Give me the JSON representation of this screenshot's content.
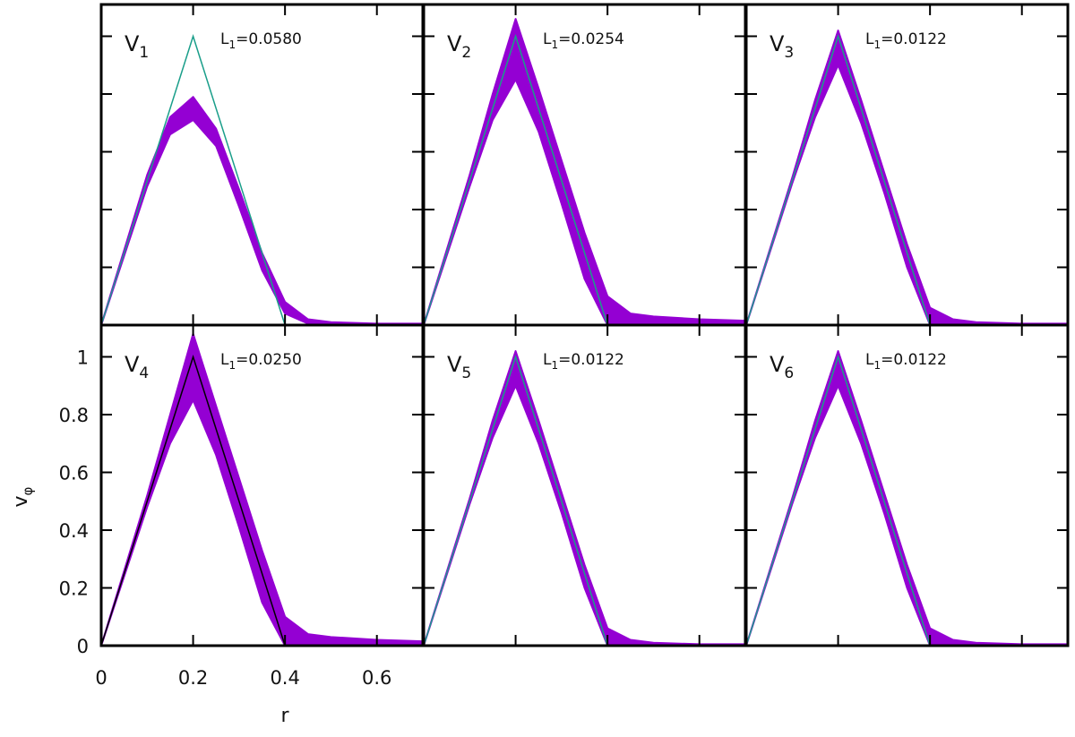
{
  "chart_data": {
    "type": "scatter",
    "xlabel": "r",
    "ylabel_main": "v",
    "ylabel_sub": "φ",
    "xlim": [
      0,
      0.7
    ],
    "ylim": [
      0,
      1.11
    ],
    "xticks": [
      "0",
      "0.2",
      "0.4",
      "0.6"
    ],
    "xtick_values": [
      0,
      0.2,
      0.4,
      0.6
    ],
    "yticks": [
      "0",
      "0.2",
      "0.4",
      "0.6",
      "0.8",
      "1"
    ],
    "ytick_values": [
      0,
      0.2,
      0.4,
      0.6,
      0.8,
      1
    ],
    "grid": false,
    "colors": {
      "scatter": "#9400d3",
      "reference": "#1a9e8a",
      "reference_v4": "#000000"
    },
    "reference_curve": {
      "r": [
        0,
        0.2,
        0.4,
        0.7
      ],
      "v": [
        0,
        1,
        0,
        0
      ]
    },
    "band_r": [
      0,
      0.05,
      0.1,
      0.15,
      0.2,
      0.25,
      0.3,
      0.35,
      0.4,
      0.45,
      0.5,
      0.6,
      0.7
    ],
    "panels": [
      {
        "name": "V",
        "sub": "1",
        "l1_prefix": "L",
        "l1_sub": "1",
        "l1_value": "=0.0580",
        "reference_color": "#1a9e8a",
        "upper": [
          0,
          0.26,
          0.52,
          0.72,
          0.79,
          0.68,
          0.47,
          0.25,
          0.08,
          0.02,
          0.01,
          0.005,
          0.005
        ],
        "lower": [
          0,
          0.24,
          0.48,
          0.66,
          0.71,
          0.62,
          0.41,
          0.19,
          0.04,
          0.005,
          0,
          0,
          0
        ]
      },
      {
        "name": "V",
        "sub": "2",
        "l1_prefix": "L",
        "l1_sub": "1",
        "l1_value": "=0.0254",
        "reference_color": "#1a9e8a",
        "upper": [
          0,
          0.26,
          0.52,
          0.8,
          1.06,
          0.82,
          0.57,
          0.32,
          0.1,
          0.04,
          0.03,
          0.02,
          0.015
        ],
        "lower": [
          0,
          0.24,
          0.48,
          0.71,
          0.85,
          0.67,
          0.42,
          0.16,
          0,
          0,
          0,
          0,
          0
        ]
      },
      {
        "name": "V",
        "sub": "3",
        "l1_prefix": "L",
        "l1_sub": "1",
        "l1_value": "=0.0122",
        "reference_color": "#1a9e8a",
        "upper": [
          0,
          0.255,
          0.51,
          0.78,
          1.02,
          0.78,
          0.53,
          0.28,
          0.06,
          0.02,
          0.01,
          0.005,
          0.005
        ],
        "lower": [
          0,
          0.245,
          0.49,
          0.72,
          0.9,
          0.7,
          0.46,
          0.2,
          0,
          0,
          0,
          0,
          0
        ]
      },
      {
        "name": "V",
        "sub": "4",
        "l1_prefix": "L",
        "l1_sub": "1",
        "l1_value": "=0.0250",
        "reference_color": "#000000",
        "upper": [
          0,
          0.26,
          0.52,
          0.8,
          1.08,
          0.83,
          0.58,
          0.33,
          0.1,
          0.04,
          0.03,
          0.02,
          0.015
        ],
        "lower": [
          0,
          0.24,
          0.48,
          0.7,
          0.85,
          0.66,
          0.41,
          0.15,
          0,
          0,
          0,
          0,
          0
        ]
      },
      {
        "name": "V",
        "sub": "5",
        "l1_prefix": "L",
        "l1_sub": "1",
        "l1_value": "=0.0122",
        "reference_color": "#1a9e8a",
        "upper": [
          0,
          0.255,
          0.51,
          0.78,
          1.02,
          0.78,
          0.53,
          0.28,
          0.06,
          0.02,
          0.01,
          0.005,
          0.005
        ],
        "lower": [
          0,
          0.245,
          0.49,
          0.72,
          0.9,
          0.7,
          0.46,
          0.2,
          0,
          0,
          0,
          0,
          0
        ]
      },
      {
        "name": "V",
        "sub": "6",
        "l1_prefix": "L",
        "l1_sub": "1",
        "l1_value": "=0.0122",
        "reference_color": "#1a9e8a",
        "upper": [
          0,
          0.255,
          0.51,
          0.78,
          1.02,
          0.78,
          0.53,
          0.28,
          0.06,
          0.02,
          0.01,
          0.005,
          0.005
        ],
        "lower": [
          0,
          0.245,
          0.49,
          0.72,
          0.9,
          0.7,
          0.46,
          0.2,
          0,
          0,
          0,
          0,
          0
        ]
      }
    ]
  }
}
